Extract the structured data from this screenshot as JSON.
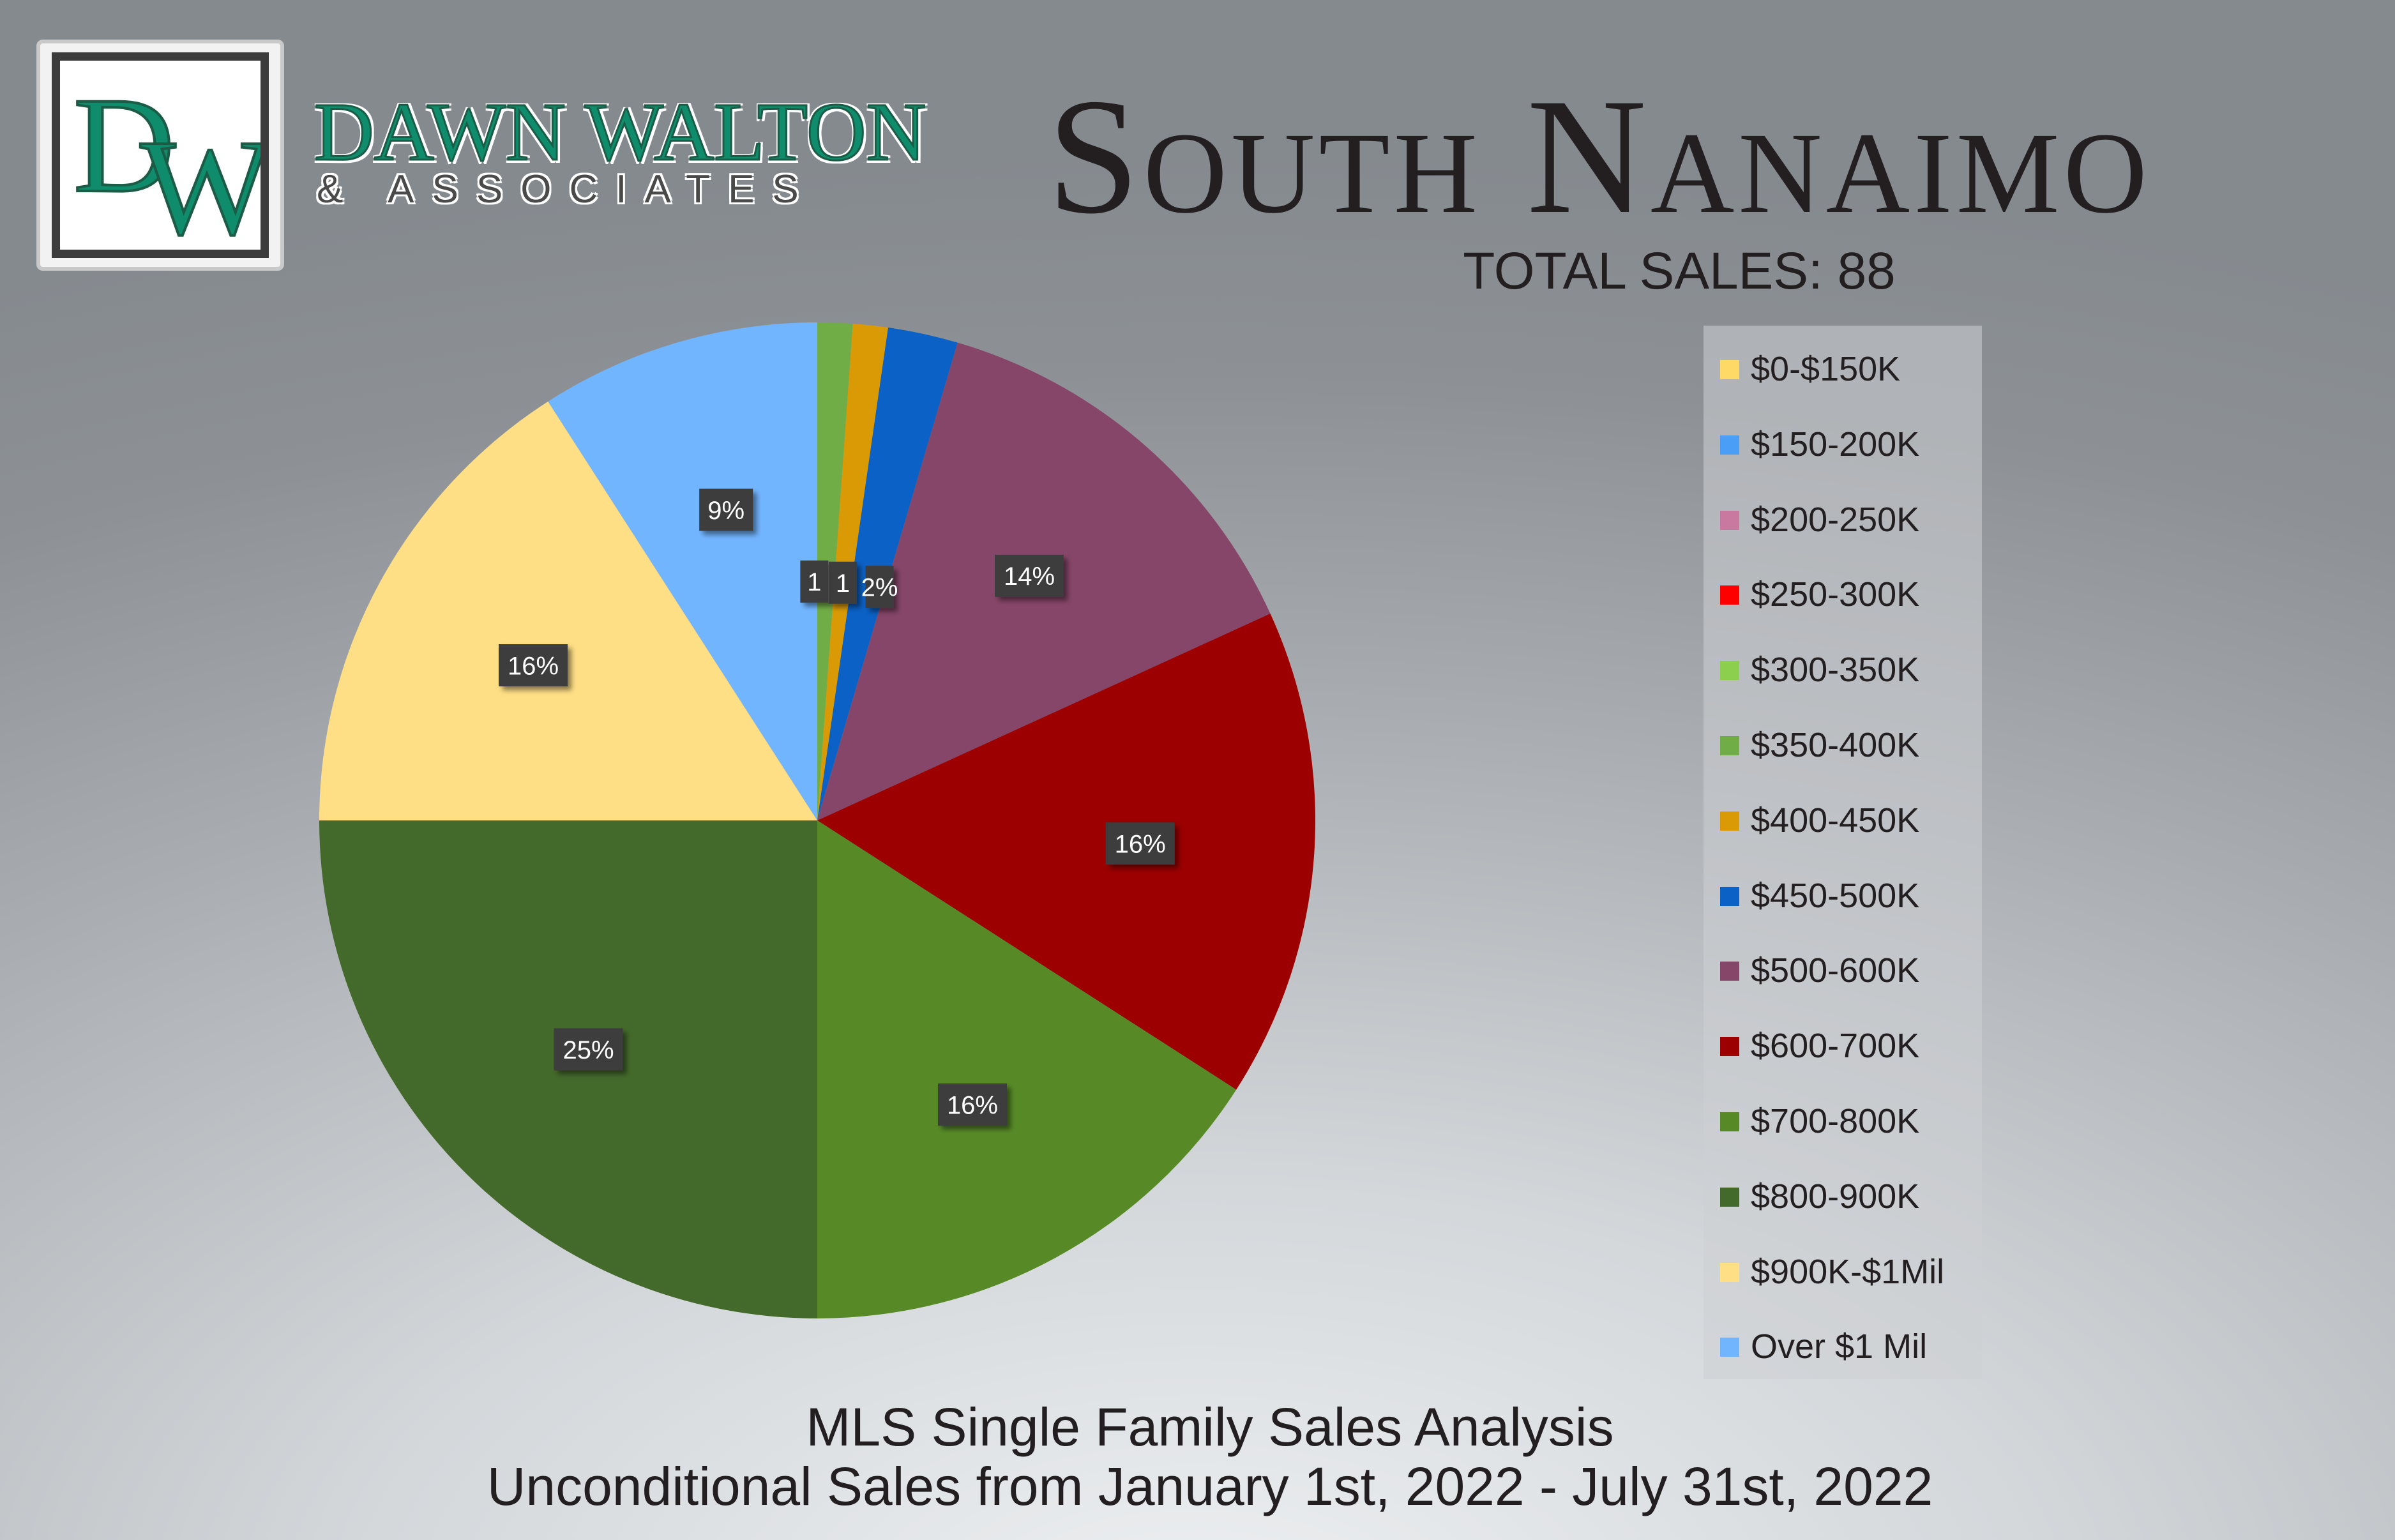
{
  "brand": {
    "monogram": "DW",
    "name": "DAWN WALTON",
    "sub": "& ASSOCIATES"
  },
  "header": {
    "title": "South Nanaimo",
    "total_sales": "TOTAL SALES: 88"
  },
  "footer": {
    "line1": "MLS Single Family Sales Analysis",
    "line2": "Unconditional Sales from January 1st, 2022 - July 31st, 2022"
  },
  "chart_data": {
    "type": "pie",
    "legend_position": "right",
    "categories": [
      "$0-$150K",
      "$150-200K",
      "$200-250K",
      "$250-300K",
      "$300-350K",
      "$350-400K",
      "$400-450K",
      "$450-500K",
      "$500-600K",
      "$600-700K",
      "$700-800K",
      "$800-900K",
      "$900K-$1Mil",
      "Over $1 Mil"
    ],
    "values": [
      0,
      0,
      0,
      0,
      0,
      1,
      1,
      2,
      12,
      14,
      14,
      22,
      14,
      8
    ],
    "data_labels": [
      "",
      "",
      "",
      "",
      "",
      "1",
      "1",
      "2%",
      "14%",
      "16%",
      "16%",
      "25%",
      "16%",
      "9%"
    ],
    "colors": [
      "#ffd966",
      "#4a9ef5",
      "#c9799f",
      "#ff0000",
      "#8ccf4f",
      "#70ad47",
      "#d99a05",
      "#0b61c5",
      "#864669",
      "#9c0000",
      "#578a27",
      "#446a2b",
      "#ffdf85",
      "#72b5ff"
    ]
  }
}
